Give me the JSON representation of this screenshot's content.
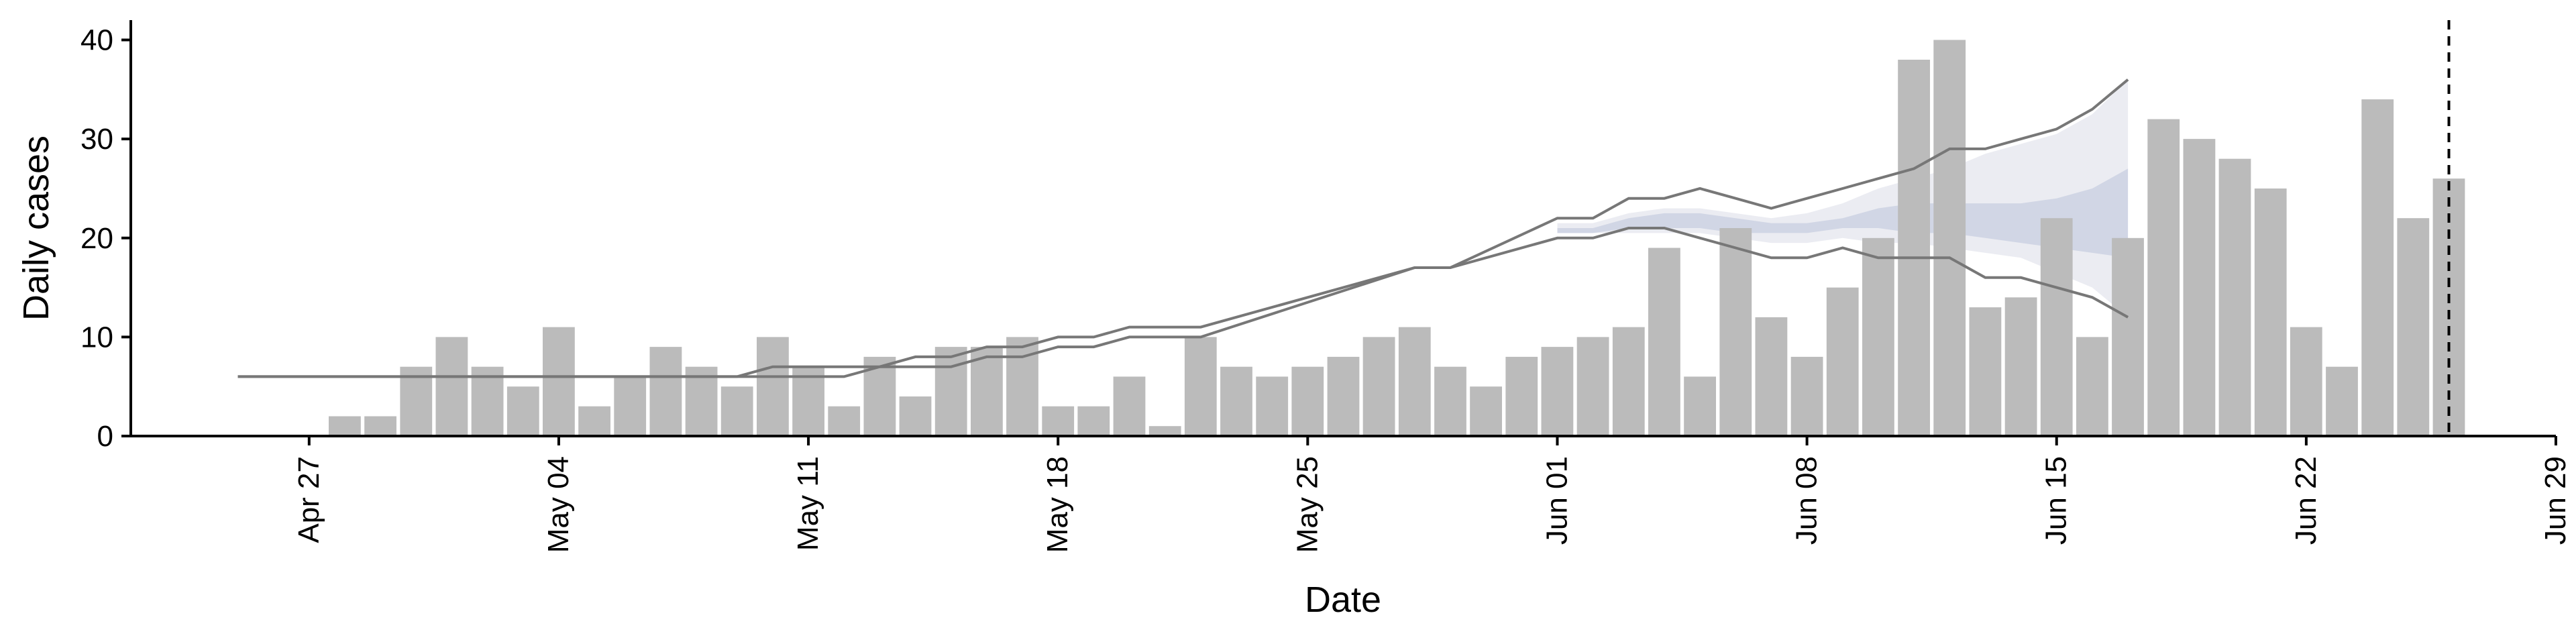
{
  "chart_data": {
    "type": "bar",
    "title": "",
    "xlabel": "Date",
    "ylabel": "Daily cases",
    "ylim": [
      0,
      42
    ],
    "xlim": [
      "2020-04-22",
      "2020-06-29"
    ],
    "grid": false,
    "legend": "none",
    "y_ticks": [
      0,
      10,
      20,
      30,
      40
    ],
    "x_ticks": [
      {
        "date": "2020-04-27",
        "label": "Apr 27"
      },
      {
        "date": "2020-05-04",
        "label": "May 04"
      },
      {
        "date": "2020-05-11",
        "label": "May 11"
      },
      {
        "date": "2020-05-18",
        "label": "May 18"
      },
      {
        "date": "2020-05-25",
        "label": "May 25"
      },
      {
        "date": "2020-06-01",
        "label": "Jun 01"
      },
      {
        "date": "2020-06-08",
        "label": "Jun 08"
      },
      {
        "date": "2020-06-15",
        "label": "Jun 15"
      },
      {
        "date": "2020-06-22",
        "label": "Jun 22"
      },
      {
        "date": "2020-06-29",
        "label": "Jun 29"
      }
    ],
    "bars": {
      "start_date": "2020-04-28",
      "values": [
        2,
        2,
        7,
        10,
        7,
        5,
        11,
        3,
        6,
        9,
        7,
        5,
        10,
        7,
        3,
        8,
        4,
        9,
        9,
        10,
        3,
        3,
        6,
        1,
        10,
        7,
        6,
        7,
        8,
        10,
        11,
        7,
        5,
        8,
        9,
        10,
        11,
        19,
        6,
        21,
        12,
        8,
        15,
        20,
        38,
        40,
        13,
        14,
        22,
        10,
        20,
        32,
        30,
        28,
        25,
        11,
        7,
        34,
        22,
        26
      ],
      "color": "#bbbbbb"
    },
    "bounds": {
      "x": [
        "2020-04-25",
        "2020-05-08",
        "2020-05-09",
        "2020-05-10",
        "2020-05-11",
        "2020-05-12",
        "2020-05-13",
        "2020-05-14",
        "2020-05-15",
        "2020-05-16",
        "2020-05-17",
        "2020-05-18",
        "2020-05-19",
        "2020-05-20",
        "2020-05-21",
        "2020-05-22",
        "2020-05-28",
        "2020-05-29",
        "2020-06-01",
        "2020-06-02",
        "2020-06-03",
        "2020-06-04",
        "2020-06-05",
        "2020-06-06",
        "2020-06-07",
        "2020-06-08",
        "2020-06-09",
        "2020-06-10",
        "2020-06-11",
        "2020-06-12",
        "2020-06-13",
        "2020-06-14",
        "2020-06-15",
        "2020-06-16",
        "2020-06-17"
      ],
      "upper": [
        6,
        6,
        6,
        7,
        7,
        7,
        7,
        8,
        8,
        9,
        9,
        10,
        10,
        11,
        11,
        11,
        17,
        17,
        22,
        22,
        24,
        24,
        25,
        24,
        23,
        24,
        25,
        26,
        27,
        29,
        29,
        30,
        31,
        33,
        36
      ],
      "lower": [
        6,
        6,
        6,
        6,
        6,
        6,
        7,
        7,
        7,
        8,
        8,
        9,
        9,
        10,
        10,
        10,
        17,
        17,
        20,
        20,
        21,
        21,
        20,
        19,
        18,
        18,
        19,
        18,
        18,
        18,
        16,
        16,
        15,
        14,
        12
      ],
      "color": "#777777"
    },
    "forecast": {
      "x": [
        "2020-06-01",
        "2020-06-02",
        "2020-06-03",
        "2020-06-04",
        "2020-06-05",
        "2020-06-06",
        "2020-06-07",
        "2020-06-08",
        "2020-06-09",
        "2020-06-10",
        "2020-06-11",
        "2020-06-12",
        "2020-06-13",
        "2020-06-14",
        "2020-06-15",
        "2020-06-16",
        "2020-06-17"
      ],
      "outer_upper": [
        21.5,
        21.5,
        22.5,
        23,
        23,
        22.5,
        22,
        22.5,
        23.5,
        25,
        26,
        27,
        28.5,
        29.5,
        30.5,
        32.5,
        36
      ],
      "outer_lower": [
        20.5,
        20.5,
        20.5,
        20.5,
        20.5,
        20,
        19.5,
        19.5,
        20,
        19.5,
        19.5,
        19,
        18.5,
        18,
        16.5,
        15,
        12
      ],
      "inner_upper": [
        21,
        21,
        22,
        22.5,
        22.5,
        22,
        21.5,
        21.5,
        22,
        23,
        23.5,
        23.5,
        23.5,
        23.5,
        24,
        25,
        27
      ],
      "inner_lower": [
        20.5,
        20.5,
        21,
        21,
        21,
        20.5,
        20.5,
        20.5,
        21,
        21,
        20.5,
        20.5,
        20,
        19.5,
        19,
        18.5,
        18
      ],
      "outer_color": "#e8e9f0",
      "inner_color": "#c8cfe0"
    },
    "marker_line": {
      "date": "2020-06-26",
      "style": "dashed"
    }
  }
}
